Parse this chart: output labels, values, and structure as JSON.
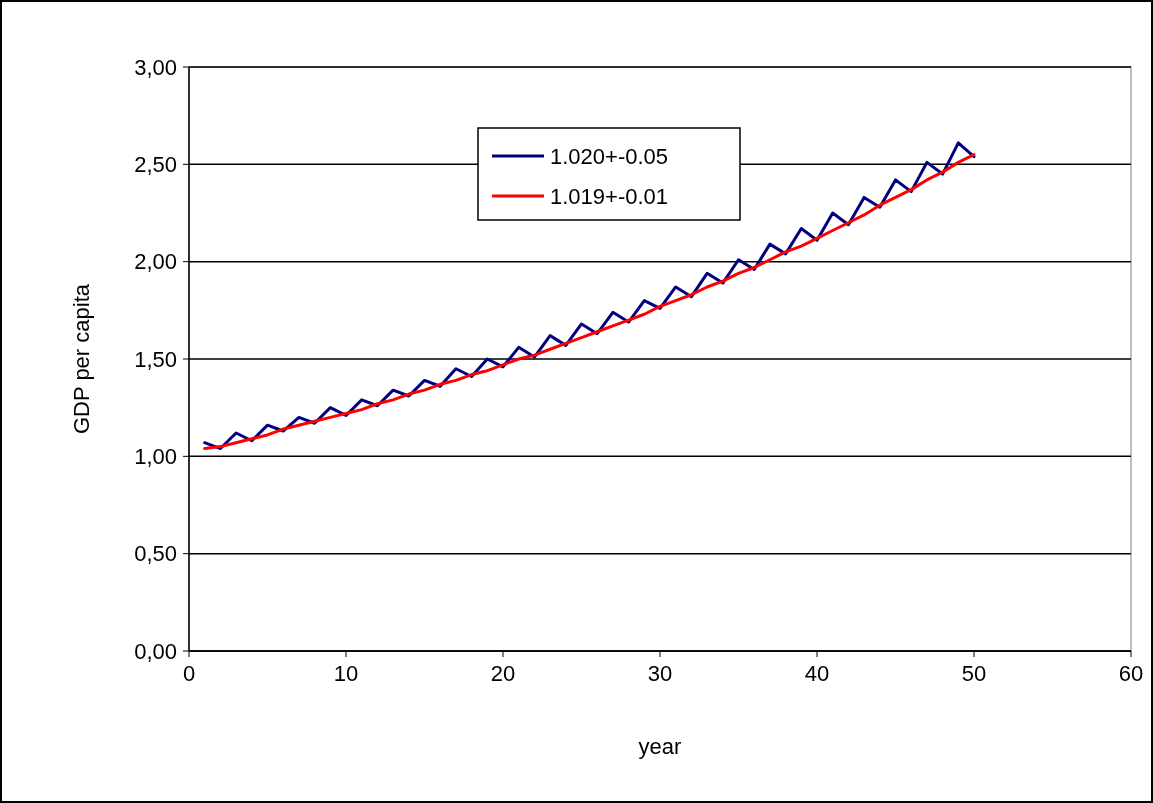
{
  "chart_data": {
    "type": "line",
    "xlabel": "year",
    "ylabel": "GDP per capita",
    "x": [
      1,
      2,
      3,
      4,
      5,
      6,
      7,
      8,
      9,
      10,
      11,
      12,
      13,
      14,
      15,
      16,
      17,
      18,
      19,
      20,
      21,
      22,
      23,
      24,
      25,
      26,
      27,
      28,
      29,
      30,
      31,
      32,
      33,
      34,
      35,
      36,
      37,
      38,
      39,
      40,
      41,
      42,
      43,
      44,
      45,
      46,
      47,
      48,
      49,
      50
    ],
    "series": [
      {
        "name": "1.020+-0.05",
        "color": "#000080",
        "values": [
          1.07,
          1.04,
          1.12,
          1.08,
          1.16,
          1.13,
          1.2,
          1.17,
          1.25,
          1.21,
          1.29,
          1.26,
          1.34,
          1.31,
          1.39,
          1.36,
          1.45,
          1.41,
          1.5,
          1.46,
          1.56,
          1.51,
          1.62,
          1.57,
          1.68,
          1.63,
          1.74,
          1.69,
          1.8,
          1.76,
          1.87,
          1.82,
          1.94,
          1.89,
          2.01,
          1.96,
          2.09,
          2.04,
          2.17,
          2.11,
          2.25,
          2.19,
          2.33,
          2.28,
          2.42,
          2.36,
          2.51,
          2.45,
          2.61,
          2.54
        ]
      },
      {
        "name": "1.019+-0.01",
        "color": "#ff0000",
        "values": [
          1.04,
          1.05,
          1.07,
          1.09,
          1.11,
          1.14,
          1.16,
          1.18,
          1.2,
          1.22,
          1.24,
          1.27,
          1.29,
          1.32,
          1.34,
          1.37,
          1.39,
          1.42,
          1.44,
          1.47,
          1.5,
          1.52,
          1.55,
          1.58,
          1.61,
          1.64,
          1.67,
          1.7,
          1.73,
          1.77,
          1.8,
          1.83,
          1.87,
          1.9,
          1.94,
          1.97,
          2.01,
          2.05,
          2.08,
          2.12,
          2.16,
          2.2,
          2.24,
          2.29,
          2.33,
          2.37,
          2.42,
          2.46,
          2.51,
          2.55
        ]
      }
    ],
    "xlim": [
      0,
      60
    ],
    "xticks": [
      0,
      10,
      20,
      30,
      40,
      50,
      60
    ],
    "ylim": [
      0,
      3
    ],
    "yticks": [
      {
        "value": 0,
        "label": "0,00"
      },
      {
        "value": 0.5,
        "label": "0,50"
      },
      {
        "value": 1,
        "label": "1,00"
      },
      {
        "value": 1.5,
        "label": "1,50"
      },
      {
        "value": 2,
        "label": "2,00"
      },
      {
        "value": 2.5,
        "label": "2,50"
      },
      {
        "value": 3,
        "label": "3,00"
      }
    ],
    "grid": "y",
    "legend": "top",
    "marker": "none",
    "line_style": "solid"
  }
}
